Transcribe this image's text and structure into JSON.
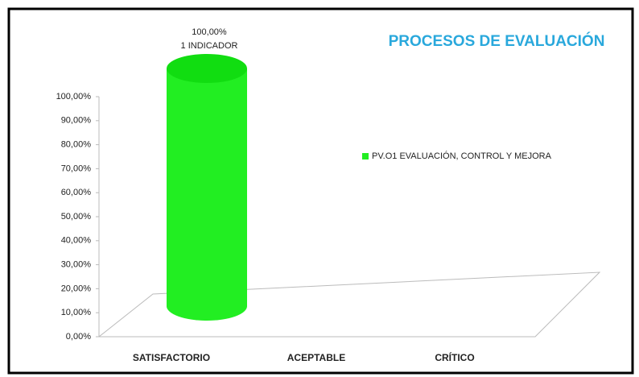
{
  "chart_data": {
    "type": "cylinder_bar",
    "title": "PROCESOS DE EVALUACIÓN",
    "categories": [
      "SATISFACTORIO",
      "ACEPTABLE",
      "CRÍTICO"
    ],
    "series": [
      {
        "name": "PV.O1 EVALUACIÓN, CONTROL Y MEJORA",
        "color": "#22ee22",
        "values": [
          100,
          0,
          0
        ],
        "value_labels": [
          "100,00%",
          null,
          null
        ]
      }
    ],
    "annotations": [
      "1 INDICADOR"
    ],
    "ylim": [
      0,
      100
    ],
    "yticks": [
      {
        "value": 0,
        "label": "0,00%"
      },
      {
        "value": 10,
        "label": "10,00%"
      },
      {
        "value": 20,
        "label": "20,00%"
      },
      {
        "value": 30,
        "label": "30,00%"
      },
      {
        "value": 40,
        "label": "40,00%"
      },
      {
        "value": 50,
        "label": "50,00%"
      },
      {
        "value": 60,
        "label": "60,00%"
      },
      {
        "value": 70,
        "label": "70,00%"
      },
      {
        "value": 80,
        "label": "80,00%"
      },
      {
        "value": 90,
        "label": "90,00%"
      },
      {
        "value": 100,
        "label": "100,00%"
      }
    ],
    "legend": "right"
  }
}
